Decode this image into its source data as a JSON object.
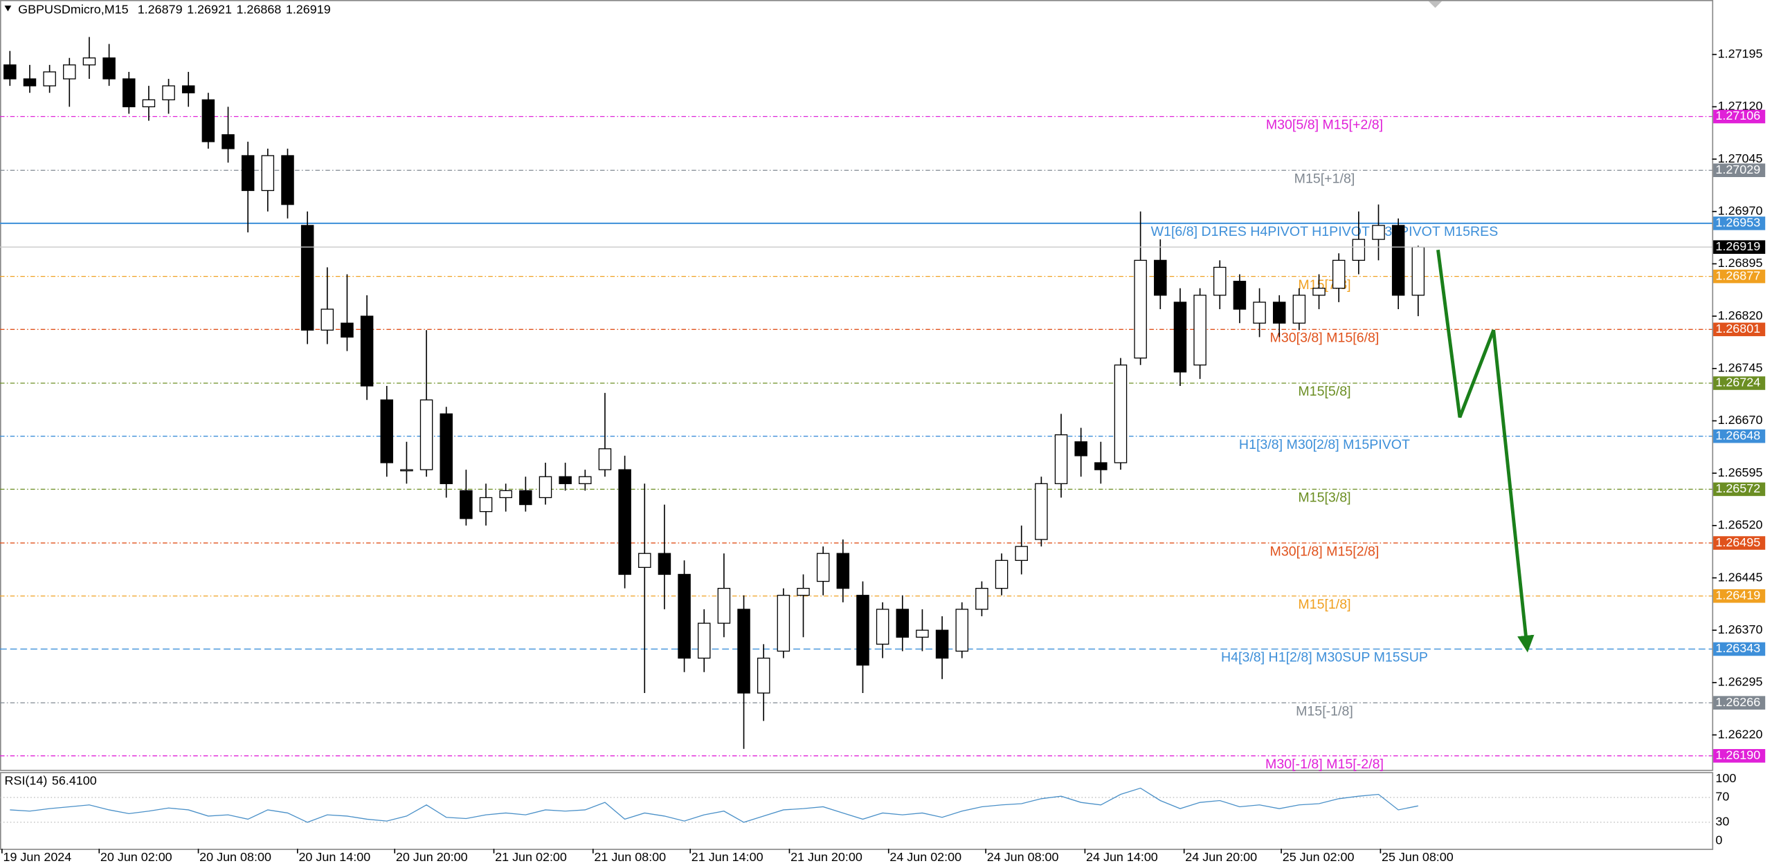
{
  "chart_data": {
    "type": "candlestick",
    "symbol": "GBPUSDmicro,M15",
    "ohlc": [
      1.26879,
      1.26921,
      1.26868,
      1.26919
    ],
    "bull_color": "#ffffff",
    "bear_color": "#000000",
    "open": [
      1.2718,
      1.2716,
      1.2715,
      1.2716,
      1.2718,
      1.2719,
      1.2716,
      1.2712,
      1.2713,
      1.2715,
      1.2713,
      1.2708,
      1.2705,
      1.27,
      1.2705,
      1.2695,
      1.268,
      1.2681,
      1.2682,
      1.267,
      1.266,
      1.266,
      1.2668,
      1.2657,
      1.2654,
      1.2656,
      1.2657,
      1.2656,
      1.2659,
      1.2658,
      1.266,
      1.266,
      1.2646,
      1.2648,
      1.2645,
      1.2633,
      1.2638,
      1.264,
      1.2628,
      1.2634,
      1.2642,
      1.2644,
      1.2648,
      1.2642,
      1.2635,
      1.264,
      1.2636,
      1.2637,
      1.2634,
      1.264,
      1.2643,
      1.2647,
      1.265,
      1.2658,
      1.2664,
      1.2661,
      1.2661,
      1.2676,
      1.269,
      1.2684,
      1.2675,
      1.2685,
      1.2687,
      1.2681,
      1.2684,
      1.2681,
      1.2685,
      1.2686,
      1.269,
      1.2693,
      1.2695,
      1.2685
    ],
    "high": [
      1.272,
      1.2718,
      1.2718,
      1.2719,
      1.2722,
      1.2721,
      1.2717,
      1.2715,
      1.2716,
      1.2717,
      1.2714,
      1.2712,
      1.2707,
      1.2706,
      1.2706,
      1.2697,
      1.2689,
      1.2688,
      1.2685,
      1.2672,
      1.2664,
      1.268,
      1.2669,
      1.266,
      1.2658,
      1.2658,
      1.2659,
      1.2661,
      1.2661,
      1.266,
      1.2671,
      1.2662,
      1.2658,
      1.2655,
      1.2647,
      1.264,
      1.2648,
      1.2642,
      1.2635,
      1.2643,
      1.2645,
      1.2649,
      1.265,
      1.2644,
      1.2641,
      1.2642,
      1.264,
      1.2639,
      1.2641,
      1.2644,
      1.2648,
      1.2652,
      1.2659,
      1.2668,
      1.2666,
      1.2664,
      1.2676,
      1.2697,
      1.2693,
      1.2686,
      1.2686,
      1.269,
      1.2688,
      1.2686,
      1.2685,
      1.2686,
      1.2688,
      1.2691,
      1.2697,
      1.2698,
      1.2696,
      1.26921
    ],
    "low": [
      1.2715,
      1.2714,
      1.2714,
      1.2712,
      1.2716,
      1.2715,
      1.2711,
      1.271,
      1.2711,
      1.2712,
      1.2706,
      1.2704,
      1.2694,
      1.2697,
      1.2696,
      1.2678,
      1.2678,
      1.2677,
      1.267,
      1.2659,
      1.2658,
      1.2659,
      1.2656,
      1.2652,
      1.2652,
      1.2654,
      1.2654,
      1.2655,
      1.2657,
      1.2657,
      1.2659,
      1.2643,
      1.2628,
      1.264,
      1.2631,
      1.2631,
      1.2636,
      1.262,
      1.2624,
      1.2633,
      1.2636,
      1.2642,
      1.2641,
      1.2628,
      1.2633,
      1.2634,
      1.2634,
      1.263,
      1.2633,
      1.2639,
      1.2642,
      1.2645,
      1.2649,
      1.2656,
      1.2659,
      1.2658,
      1.266,
      1.2675,
      1.2683,
      1.2672,
      1.2673,
      1.2683,
      1.2681,
      1.2679,
      1.2679,
      1.268,
      1.2683,
      1.2684,
      1.2688,
      1.269,
      1.2683,
      1.2682
    ],
    "close": [
      1.2716,
      1.2715,
      1.2717,
      1.2718,
      1.2719,
      1.2716,
      1.2712,
      1.2713,
      1.2715,
      1.2714,
      1.2707,
      1.2706,
      1.27,
      1.2705,
      1.2698,
      1.268,
      1.2683,
      1.2679,
      1.2672,
      1.2661,
      1.266,
      1.267,
      1.2658,
      1.2653,
      1.2656,
      1.2657,
      1.2655,
      1.2659,
      1.2658,
      1.2659,
      1.2663,
      1.2645,
      1.2648,
      1.2645,
      1.2633,
      1.2638,
      1.2643,
      1.2628,
      1.2633,
      1.2642,
      1.2643,
      1.2648,
      1.2643,
      1.2632,
      1.264,
      1.2636,
      1.2637,
      1.2633,
      1.264,
      1.2643,
      1.2647,
      1.2649,
      1.2658,
      1.2665,
      1.2662,
      1.266,
      1.2675,
      1.269,
      1.2685,
      1.2674,
      1.2685,
      1.2689,
      1.2683,
      1.2684,
      1.2681,
      1.2685,
      1.2686,
      1.269,
      1.2693,
      1.2695,
      1.2685,
      1.26919
    ],
    "xlim": [
      0,
      86.32
    ],
    "ylim": [
      1.2617,
      1.27273
    ],
    "xticks": [
      {
        "value": 0.1,
        "label": "19 Jun 2024"
      },
      {
        "value": 5.0,
        "label": "20 Jun 02:00"
      },
      {
        "value": 10.0,
        "label": "20 Jun 08:00"
      },
      {
        "value": 15.0,
        "label": "20 Jun 14:00"
      },
      {
        "value": 19.9,
        "label": "20 Jun 20:00"
      },
      {
        "value": 24.9,
        "label": "21 Jun 02:00"
      },
      {
        "value": 29.9,
        "label": "21 Jun 08:00"
      },
      {
        "value": 34.8,
        "label": "21 Jun 14:00"
      },
      {
        "value": 39.8,
        "label": "21 Jun 20:00"
      },
      {
        "value": 44.8,
        "label": "24 Jun 02:00"
      },
      {
        "value": 49.7,
        "label": "24 Jun 08:00"
      },
      {
        "value": 54.7,
        "label": "24 Jun 14:00"
      },
      {
        "value": 59.7,
        "label": "24 Jun 20:00"
      },
      {
        "value": 64.6,
        "label": "25 Jun 02:00"
      },
      {
        "value": 69.6,
        "label": "25 Jun 08:00"
      }
    ],
    "yticks": [
      1.27195,
      {
        "value": 1.2712,
        "label": "1.27120"
      },
      1.27045,
      {
        "value": 1.2697,
        "label": "1.26970"
      },
      1.26895,
      {
        "value": 1.2682,
        "label": "1.26820"
      },
      1.26745,
      {
        "value": 1.2667,
        "label": "1.26670"
      },
      1.26595,
      {
        "value": 1.2652,
        "label": "1.26520"
      },
      1.26445,
      {
        "value": 1.2637,
        "label": "1.26370"
      },
      1.26295,
      {
        "value": 1.2622,
        "label": "1.26220"
      }
    ],
    "levels": [
      {
        "label": "M30[5/8] M15[+2/8]",
        "price": 1.27106,
        "color": "#e020d8",
        "style": "dashdot"
      },
      {
        "label": "M15[+1/8]",
        "price": 1.27029,
        "color": "#7f8790",
        "style": "dashdot"
      },
      {
        "label": "W1[6/8] D1RES H4PIVOT H1PIVOT M30PIVOT M15RES",
        "price": 1.26953,
        "color": "#3d8fd9",
        "style": "solid"
      },
      {
        "label": "M15[7/8]",
        "price": 1.26877,
        "color": "#f0a020",
        "style": "dashdot"
      },
      {
        "label": "M30[3/8] M15[6/8]",
        "price": 1.26801,
        "color": "#e0521c",
        "style": "dashdot"
      },
      {
        "label": "M15[5/8]",
        "price": 1.26724,
        "color": "#6b8e23",
        "style": "dashdot"
      },
      {
        "label": "H1[3/8] M30[2/8] M15PIVOT",
        "price": 1.26648,
        "color": "#3d8fd9",
        "style": "dashdot"
      },
      {
        "label": "M15[3/8]",
        "price": 1.26572,
        "color": "#6b8e23",
        "style": "dashdot"
      },
      {
        "label": "M30[1/8] M15[2/8]",
        "price": 1.26495,
        "color": "#e0521c",
        "style": "dashdot"
      },
      {
        "label": "M15[1/8]",
        "price": 1.26419,
        "color": "#f0a020",
        "style": "dashdot"
      },
      {
        "label": "H4[3/8] H1[2/8] M30SUP M15SUP",
        "price": 1.26343,
        "color": "#3d8fd9",
        "style": "dashed"
      },
      {
        "label": "M15[-1/8]",
        "price": 1.26266,
        "color": "#7f8790",
        "style": "dashdot"
      },
      {
        "label": "M30[-1/8] M15[-2/8]",
        "price": {
          "value": 1.2619,
          "label": "1.26190"
        },
        "color": "#e020d8",
        "style": "dashdot"
      }
    ],
    "forecast": {
      "x": [
        72.5,
        73.6,
        75.3,
        77.0
      ],
      "values": [
        1.26915,
        1.26675,
        1.268,
        1.26343
      ],
      "color": "#1a7f1a"
    },
    "rsi": {
      "name": "RSI(14)",
      "current": {
        "value": 56.41,
        "label": "56.4100"
      },
      "color": "#4a90c8",
      "values": [
        50,
        48,
        52,
        55,
        58,
        50,
        44,
        48,
        53,
        50,
        40,
        42,
        35,
        50,
        45,
        30,
        42,
        40,
        35,
        32,
        40,
        58,
        38,
        36,
        42,
        45,
        42,
        50,
        48,
        50,
        62,
        35,
        45,
        40,
        32,
        42,
        48,
        30,
        40,
        50,
        52,
        55,
        45,
        35,
        45,
        42,
        45,
        38,
        48,
        55,
        58,
        60,
        68,
        72,
        62,
        58,
        75,
        85,
        65,
        52,
        62,
        65,
        55,
        58,
        52,
        58,
        60,
        68,
        72,
        75,
        50,
        56.41
      ],
      "ylim": [
        0,
        100
      ],
      "yticks": [
        100,
        70,
        30,
        0
      ],
      "levels": [
        70,
        30
      ]
    }
  }
}
